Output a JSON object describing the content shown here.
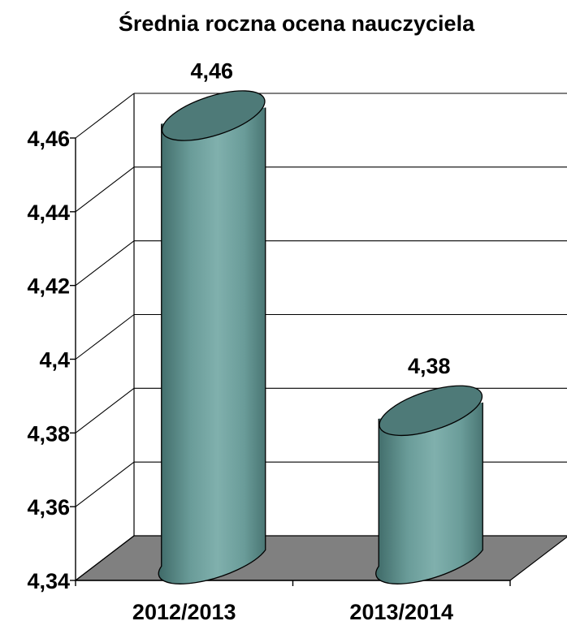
{
  "chart_data": {
    "type": "bar",
    "title": "Średnia roczna ocena nauczyciela",
    "categories": [
      "2012/2013",
      "2013/2014"
    ],
    "values": [
      4.46,
      4.38
    ],
    "data_labels": [
      "4,46",
      "4,38"
    ],
    "ylim": [
      4.34,
      4.46
    ],
    "y_ticks": [
      4.34,
      4.36,
      4.38,
      4.4,
      4.42,
      4.44,
      4.46
    ],
    "y_tick_labels": [
      "4,34",
      "4,36",
      "4,38",
      "4,4",
      "4,42",
      "4,44",
      "4,46"
    ],
    "xlabel": "",
    "ylabel": "",
    "grid": true,
    "legend": "none",
    "style": "3d-cylinder",
    "colors": {
      "bar_side": "#6a9c99",
      "bar_top": "#4e7a78",
      "floor": "#808080",
      "gridline": "#000000"
    }
  }
}
